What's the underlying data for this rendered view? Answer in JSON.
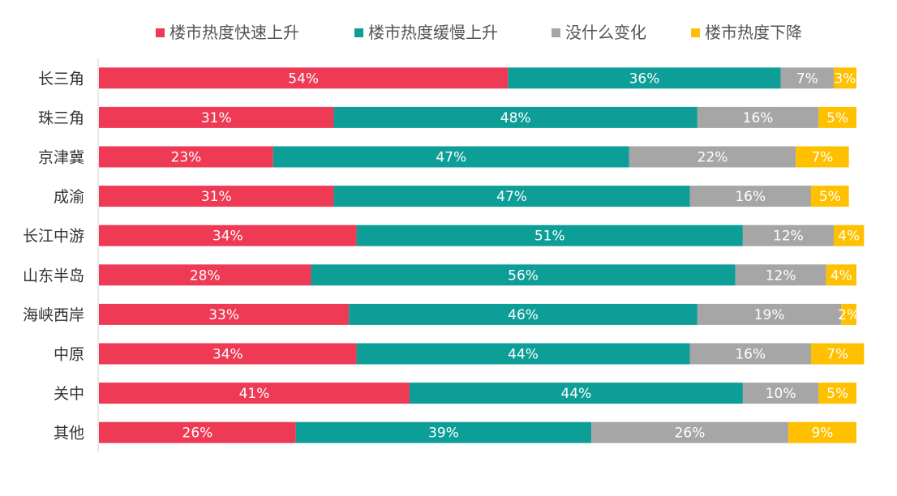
{
  "chart_data": {
    "type": "bar",
    "orientation": "horizontal",
    "stacked": true,
    "percent": true,
    "legend_position": "top",
    "grid": false,
    "xlim": [
      0,
      100
    ],
    "categories": [
      "长三角",
      "珠三角",
      "京津冀",
      "成渝",
      "长江中游",
      "山东半岛",
      "海峡西岸",
      "中原",
      "关中",
      "其他"
    ],
    "series": [
      {
        "name": "楼市热度快速上升",
        "color": "#ee3a55",
        "values": [
          54,
          31,
          23,
          31,
          34,
          28,
          33,
          34,
          41,
          26
        ]
      },
      {
        "name": "楼市热度缓慢上升",
        "color": "#0e9e98",
        "values": [
          36,
          48,
          47,
          47,
          51,
          56,
          46,
          44,
          44,
          39
        ]
      },
      {
        "name": "没什么变化",
        "color": "#a6a6a6",
        "values": [
          7,
          16,
          22,
          16,
          12,
          12,
          19,
          16,
          10,
          26
        ]
      },
      {
        "name": "楼市热度下降",
        "color": "#ffc000",
        "values": [
          3,
          5,
          7,
          5,
          4,
          4,
          2,
          7,
          5,
          9
        ]
      }
    ]
  }
}
